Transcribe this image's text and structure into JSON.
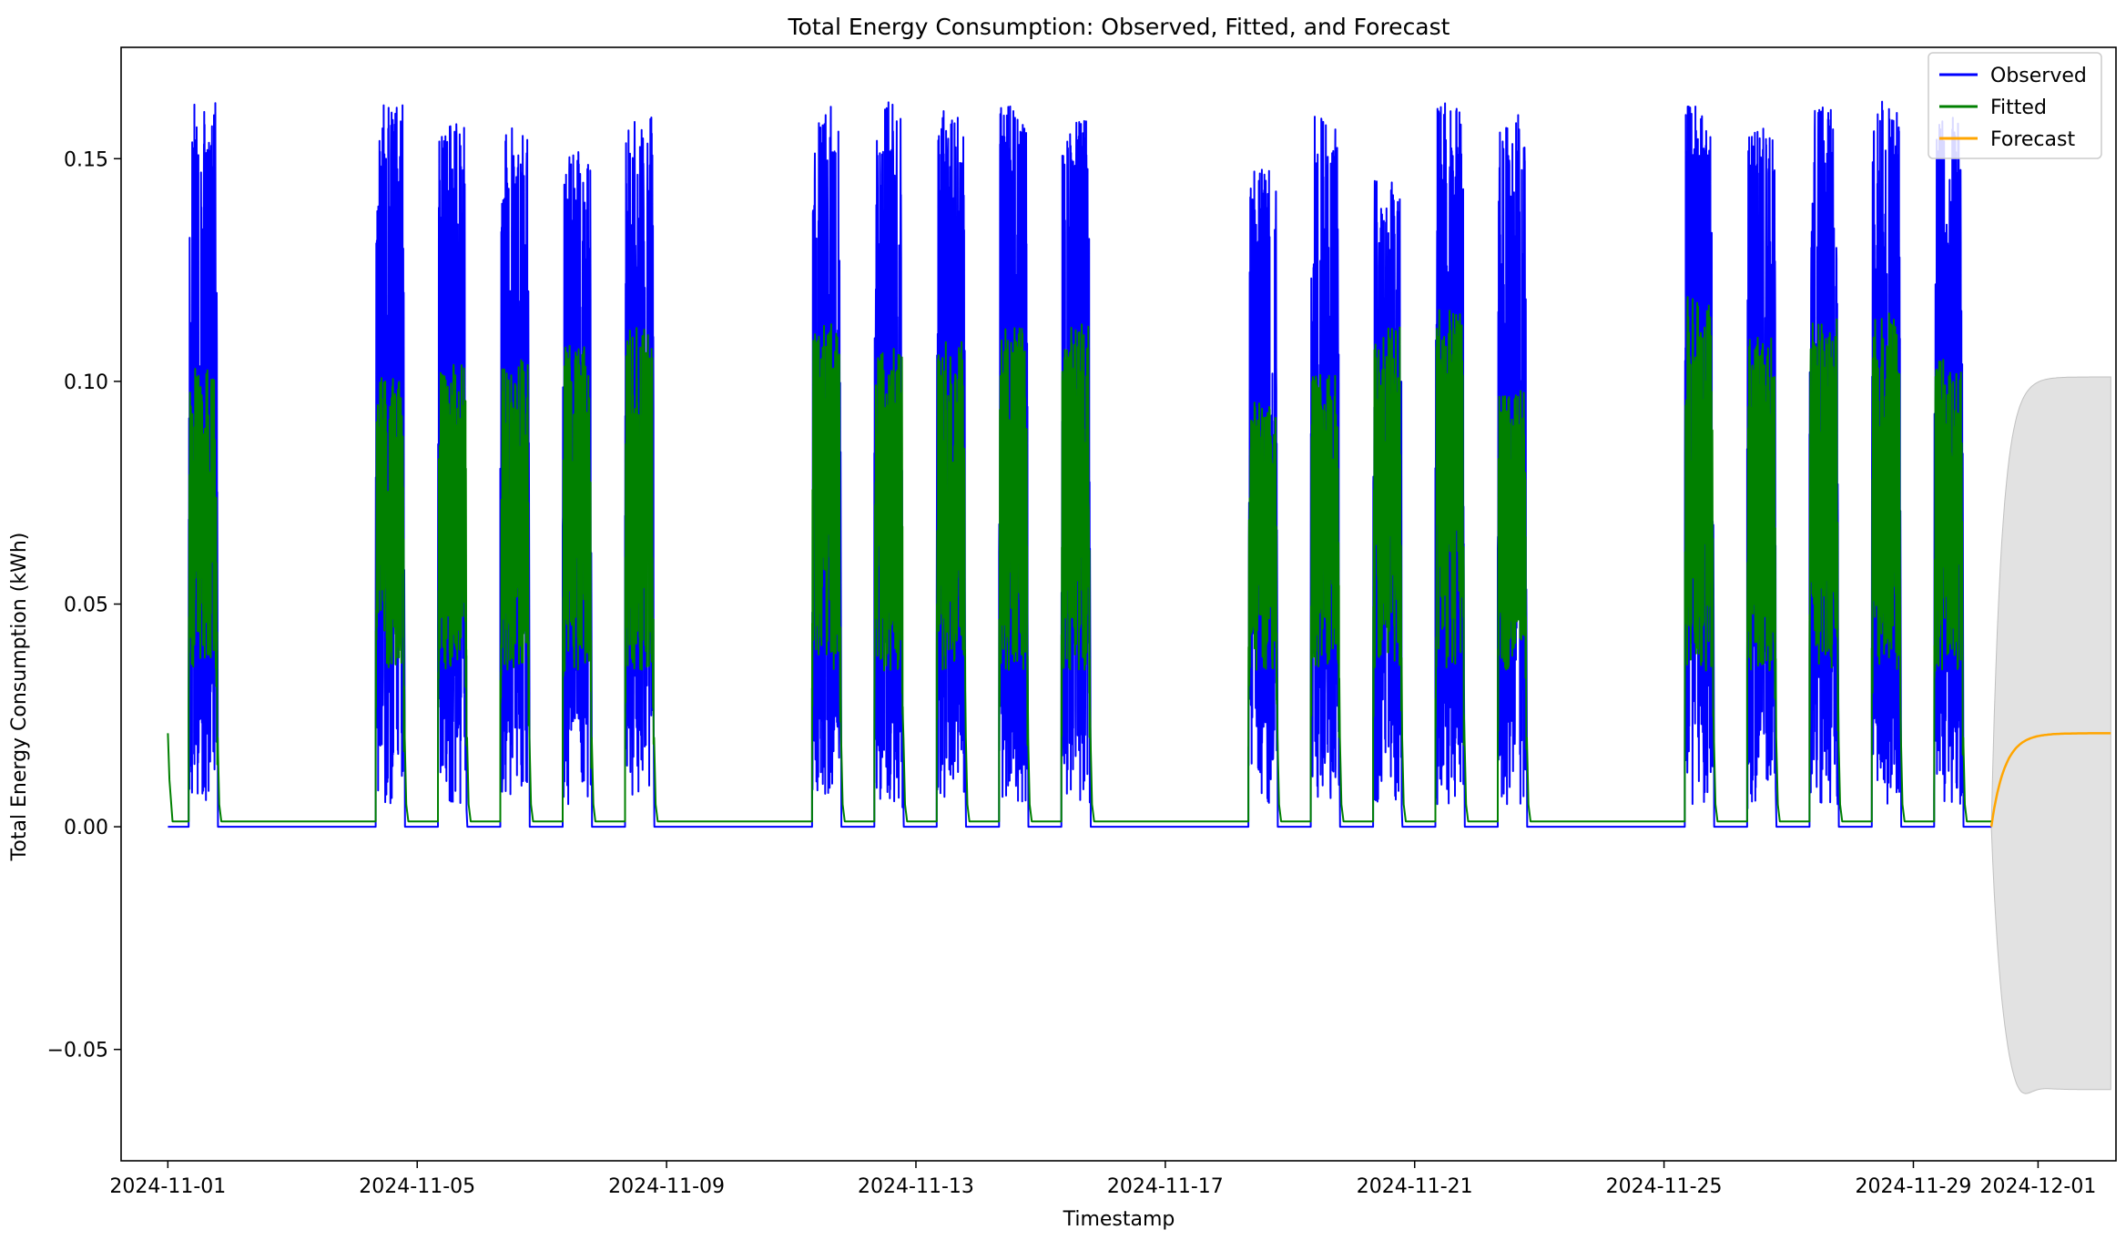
{
  "chart_data": {
    "type": "line",
    "title": "Total Energy Consumption: Observed, Fitted, and Forecast",
    "xlabel": "Timestamp",
    "ylabel": "Total Energy Consumption (kWh)",
    "x_range": [
      "2024-10-31 06:00",
      "2024-12-02 06:00"
    ],
    "ylim": [
      -0.075,
      0.175
    ],
    "x_ticks": [
      "2024-11-01",
      "2024-11-05",
      "2024-11-09",
      "2024-11-13",
      "2024-11-17",
      "2024-11-21",
      "2024-11-25",
      "2024-11-29",
      "2024-12-01"
    ],
    "y_ticks": [
      -0.05,
      0.0,
      0.05,
      0.1,
      0.15
    ],
    "y_tick_labels": [
      "−0.05",
      "0.00",
      "0.05",
      "0.10",
      "0.15"
    ],
    "grid": false,
    "legend_position": "top-right",
    "activity_periods": [
      {
        "start": "2024-11-01 08:00",
        "end": "2024-11-01 19:00",
        "observed_peak": 0.163,
        "fitted_peak": 0.103
      },
      {
        "start": "2024-11-04 08:00",
        "end": "2024-11-04 19:00",
        "observed_peak": 0.163,
        "fitted_peak": 0.102
      },
      {
        "start": "2024-11-05 08:00",
        "end": "2024-11-05 19:00",
        "observed_peak": 0.16,
        "fitted_peak": 0.104
      },
      {
        "start": "2024-11-06 08:00",
        "end": "2024-11-06 19:00",
        "observed_peak": 0.157,
        "fitted_peak": 0.105
      },
      {
        "start": "2024-11-07 08:00",
        "end": "2024-11-07 19:00",
        "observed_peak": 0.152,
        "fitted_peak": 0.108
      },
      {
        "start": "2024-11-08 08:00",
        "end": "2024-11-08 19:00",
        "observed_peak": 0.16,
        "fitted_peak": 0.112
      },
      {
        "start": "2024-11-11 08:00",
        "end": "2024-11-11 19:00",
        "observed_peak": 0.162,
        "fitted_peak": 0.113
      },
      {
        "start": "2024-11-12 08:00",
        "end": "2024-11-12 19:00",
        "observed_peak": 0.163,
        "fitted_peak": 0.108
      },
      {
        "start": "2024-11-13 08:00",
        "end": "2024-11-13 19:00",
        "observed_peak": 0.161,
        "fitted_peak": 0.109
      },
      {
        "start": "2024-11-14 08:00",
        "end": "2024-11-14 19:00",
        "observed_peak": 0.162,
        "fitted_peak": 0.112
      },
      {
        "start": "2024-11-15 08:00",
        "end": "2024-11-15 19:00",
        "observed_peak": 0.159,
        "fitted_peak": 0.113
      },
      {
        "start": "2024-11-18 08:00",
        "end": "2024-11-18 19:00",
        "observed_peak": 0.148,
        "fitted_peak": 0.096
      },
      {
        "start": "2024-11-19 08:00",
        "end": "2024-11-19 19:00",
        "observed_peak": 0.16,
        "fitted_peak": 0.102
      },
      {
        "start": "2024-11-20 08:00",
        "end": "2024-11-20 19:00",
        "observed_peak": 0.147,
        "fitted_peak": 0.113
      },
      {
        "start": "2024-11-21 08:00",
        "end": "2024-11-21 19:00",
        "observed_peak": 0.163,
        "fitted_peak": 0.116
      },
      {
        "start": "2024-11-22 08:00",
        "end": "2024-11-22 19:00",
        "observed_peak": 0.16,
        "fitted_peak": 0.098
      },
      {
        "start": "2024-11-25 08:00",
        "end": "2024-11-25 19:00",
        "observed_peak": 0.162,
        "fitted_peak": 0.119
      },
      {
        "start": "2024-11-26 08:00",
        "end": "2024-11-26 19:00",
        "observed_peak": 0.158,
        "fitted_peak": 0.11
      },
      {
        "start": "2024-11-27 08:00",
        "end": "2024-11-27 19:00",
        "observed_peak": 0.162,
        "fitted_peak": 0.114
      },
      {
        "start": "2024-11-28 08:00",
        "end": "2024-11-28 19:00",
        "observed_peak": 0.163,
        "fitted_peak": 0.116
      },
      {
        "start": "2024-11-29 08:00",
        "end": "2024-11-29 19:00",
        "observed_peak": 0.16,
        "fitted_peak": 0.105
      }
    ],
    "idle_levels": {
      "observed": 0.0,
      "fitted": 0.0012
    },
    "fitted_initial_value": {
      "x": "2024-11-01 00:00",
      "y": 0.021
    },
    "forecast": {
      "start": "2024-11-30 06:00",
      "end": "2024-12-02 04:00",
      "start_value": 0.0,
      "plateau_value": 0.021,
      "ci_upper": 0.101,
      "ci_lower": -0.059,
      "ci_lower_min": -0.063
    },
    "series": [
      {
        "name": "Observed",
        "color": "#0000ff"
      },
      {
        "name": "Fitted",
        "color": "#008000"
      },
      {
        "name": "Forecast",
        "color": "#ffa500"
      }
    ],
    "ci_color": "#d3d3d3"
  }
}
